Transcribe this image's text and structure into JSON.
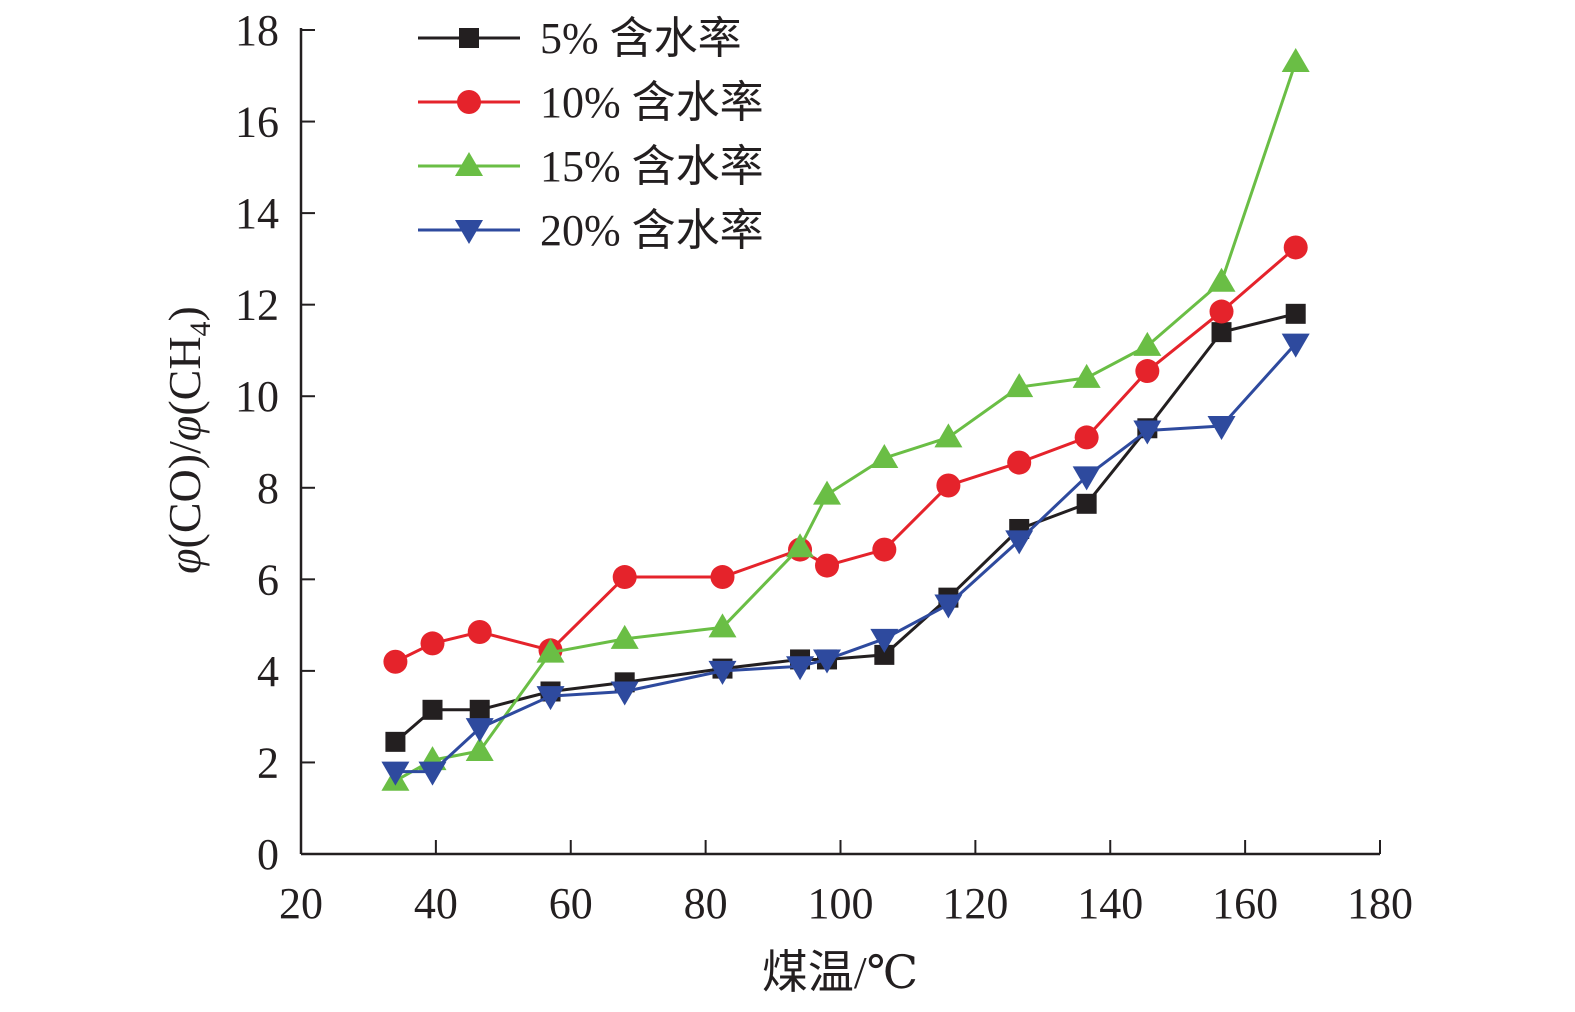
{
  "chart_data": {
    "type": "line",
    "title": "",
    "xlabel": "煤温/℃",
    "ylabel": {
      "phi": "φ",
      "part1": "(CO)/",
      "part2": "(CH",
      "subscript": "4",
      "part3": ")"
    },
    "xlim": [
      20,
      180
    ],
    "ylim": [
      0,
      18
    ],
    "xticks": [
      20,
      40,
      60,
      80,
      100,
      120,
      140,
      160,
      180
    ],
    "yticks": [
      0,
      2,
      4,
      6,
      8,
      10,
      12,
      14,
      16,
      18
    ],
    "grid": false,
    "legend_position": "top-left",
    "series": [
      {
        "name": "5% 含水率",
        "color": "#231f20",
        "marker": "square",
        "x": [
          34,
          39.5,
          46.5,
          57,
          68,
          82.5,
          94,
          98,
          106.5,
          116,
          126.5,
          136.5,
          145.5,
          156.5,
          167.5
        ],
        "y": [
          2.45,
          3.15,
          3.15,
          3.55,
          3.75,
          4.05,
          4.25,
          4.25,
          4.35,
          5.6,
          7.1,
          7.65,
          9.3,
          11.4,
          11.8
        ]
      },
      {
        "name": "10% 含水率",
        "color": "#e5232b",
        "marker": "circle",
        "x": [
          34,
          39.5,
          46.5,
          57,
          68,
          82.5,
          94,
          98,
          106.5,
          116,
          126.5,
          136.5,
          145.5,
          156.5,
          167.5
        ],
        "y": [
          4.2,
          4.6,
          4.85,
          4.45,
          6.05,
          6.05,
          6.65,
          6.3,
          6.65,
          8.05,
          8.55,
          9.1,
          10.55,
          11.85,
          13.25
        ]
      },
      {
        "name": "15% 含水率",
        "color": "#6abe45",
        "marker": "triangle-up",
        "x": [
          34,
          39.5,
          46.5,
          57,
          68,
          82.5,
          94,
          98,
          106.5,
          116,
          126.5,
          136.5,
          145.5,
          156.5,
          167.5
        ],
        "y": [
          1.6,
          2.05,
          2.25,
          4.4,
          4.7,
          4.95,
          6.7,
          7.85,
          8.65,
          9.1,
          10.2,
          10.4,
          11.1,
          12.5,
          17.3
        ]
      },
      {
        "name": "20% 含水率",
        "color": "#2e4a9e",
        "marker": "triangle-down",
        "x": [
          34,
          39.5,
          46.5,
          57,
          68,
          82.5,
          94,
          98,
          106.5,
          116,
          126.5,
          136.5,
          145.5,
          156.5,
          167.5
        ],
        "y": [
          1.8,
          1.8,
          2.75,
          3.45,
          3.55,
          4.0,
          4.1,
          4.25,
          4.7,
          5.45,
          6.85,
          8.25,
          9.25,
          9.35,
          11.15
        ]
      }
    ]
  }
}
